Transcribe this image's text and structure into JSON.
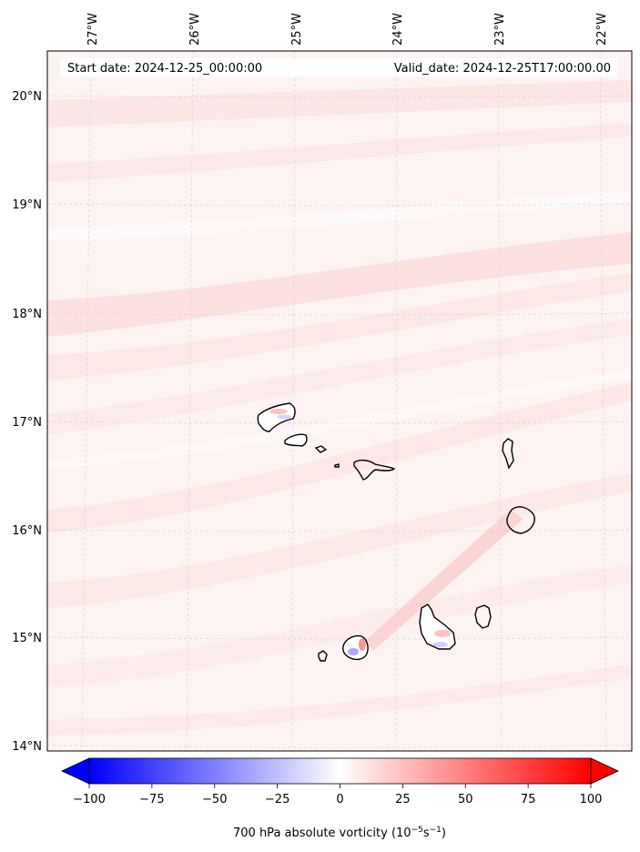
{
  "header": {
    "start_date": "Start date: 2024-12-25_00:00:00",
    "valid_date": "Valid_date: 2024-12-25T17:00:00.00"
  },
  "map": {
    "lon_labels": [
      "27°W",
      "26°W",
      "25°W",
      "24°W",
      "23°W",
      "22°W"
    ],
    "lat_labels": [
      "20°N",
      "19°N",
      "18°N",
      "17°N",
      "16°N",
      "15°N",
      "14°N"
    ],
    "islands": [
      "Santo Antão",
      "São Vicente",
      "Santa Luzia",
      "Branco",
      "Raso",
      "São Nicolau",
      "Sal",
      "Boa Vista",
      "Maio",
      "Santiago",
      "Fogo",
      "Brava"
    ],
    "colors": {
      "negative": "#0000ff",
      "zero": "#ffffff",
      "positive": "#ff0000",
      "coast": "#000000"
    }
  },
  "colorbar": {
    "tick_labels": [
      "−100",
      "−75",
      "−50",
      "−25",
      "0",
      "25",
      "50",
      "75",
      "100"
    ],
    "title_main": "700 hPa absolute vorticity (10",
    "title_exp1": "−5",
    "title_mid": "s",
    "title_exp2": "−1",
    "title_end": ")",
    "min": -100,
    "max": 100
  }
}
